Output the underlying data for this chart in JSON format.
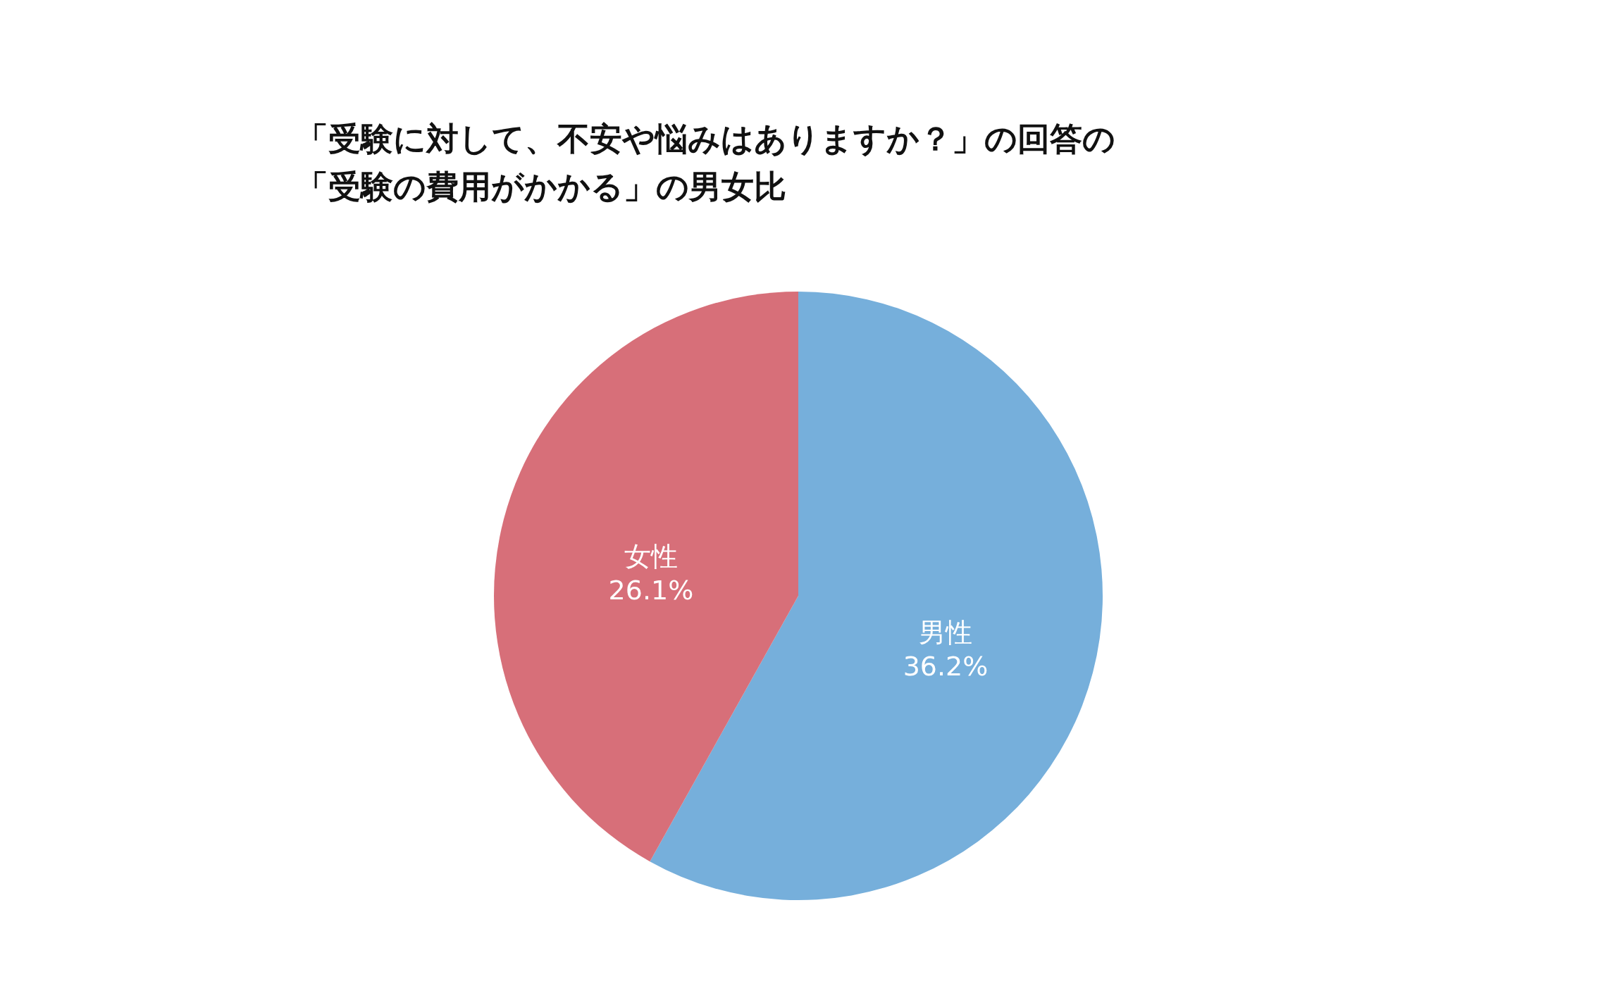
{
  "chart_data": {
    "type": "pie",
    "title": "「受験に対して、不安や悩みはありますか？」の回答の",
    "subtitle": "「受験の費用がかかる」の男女比",
    "categories": [
      "男性",
      "女性"
    ],
    "values": [
      36.2,
      26.1
    ],
    "colors": [
      "#76afdb",
      "#d76f79"
    ],
    "value_labels": [
      "36.2%",
      "26.1%"
    ],
    "legend": false
  }
}
